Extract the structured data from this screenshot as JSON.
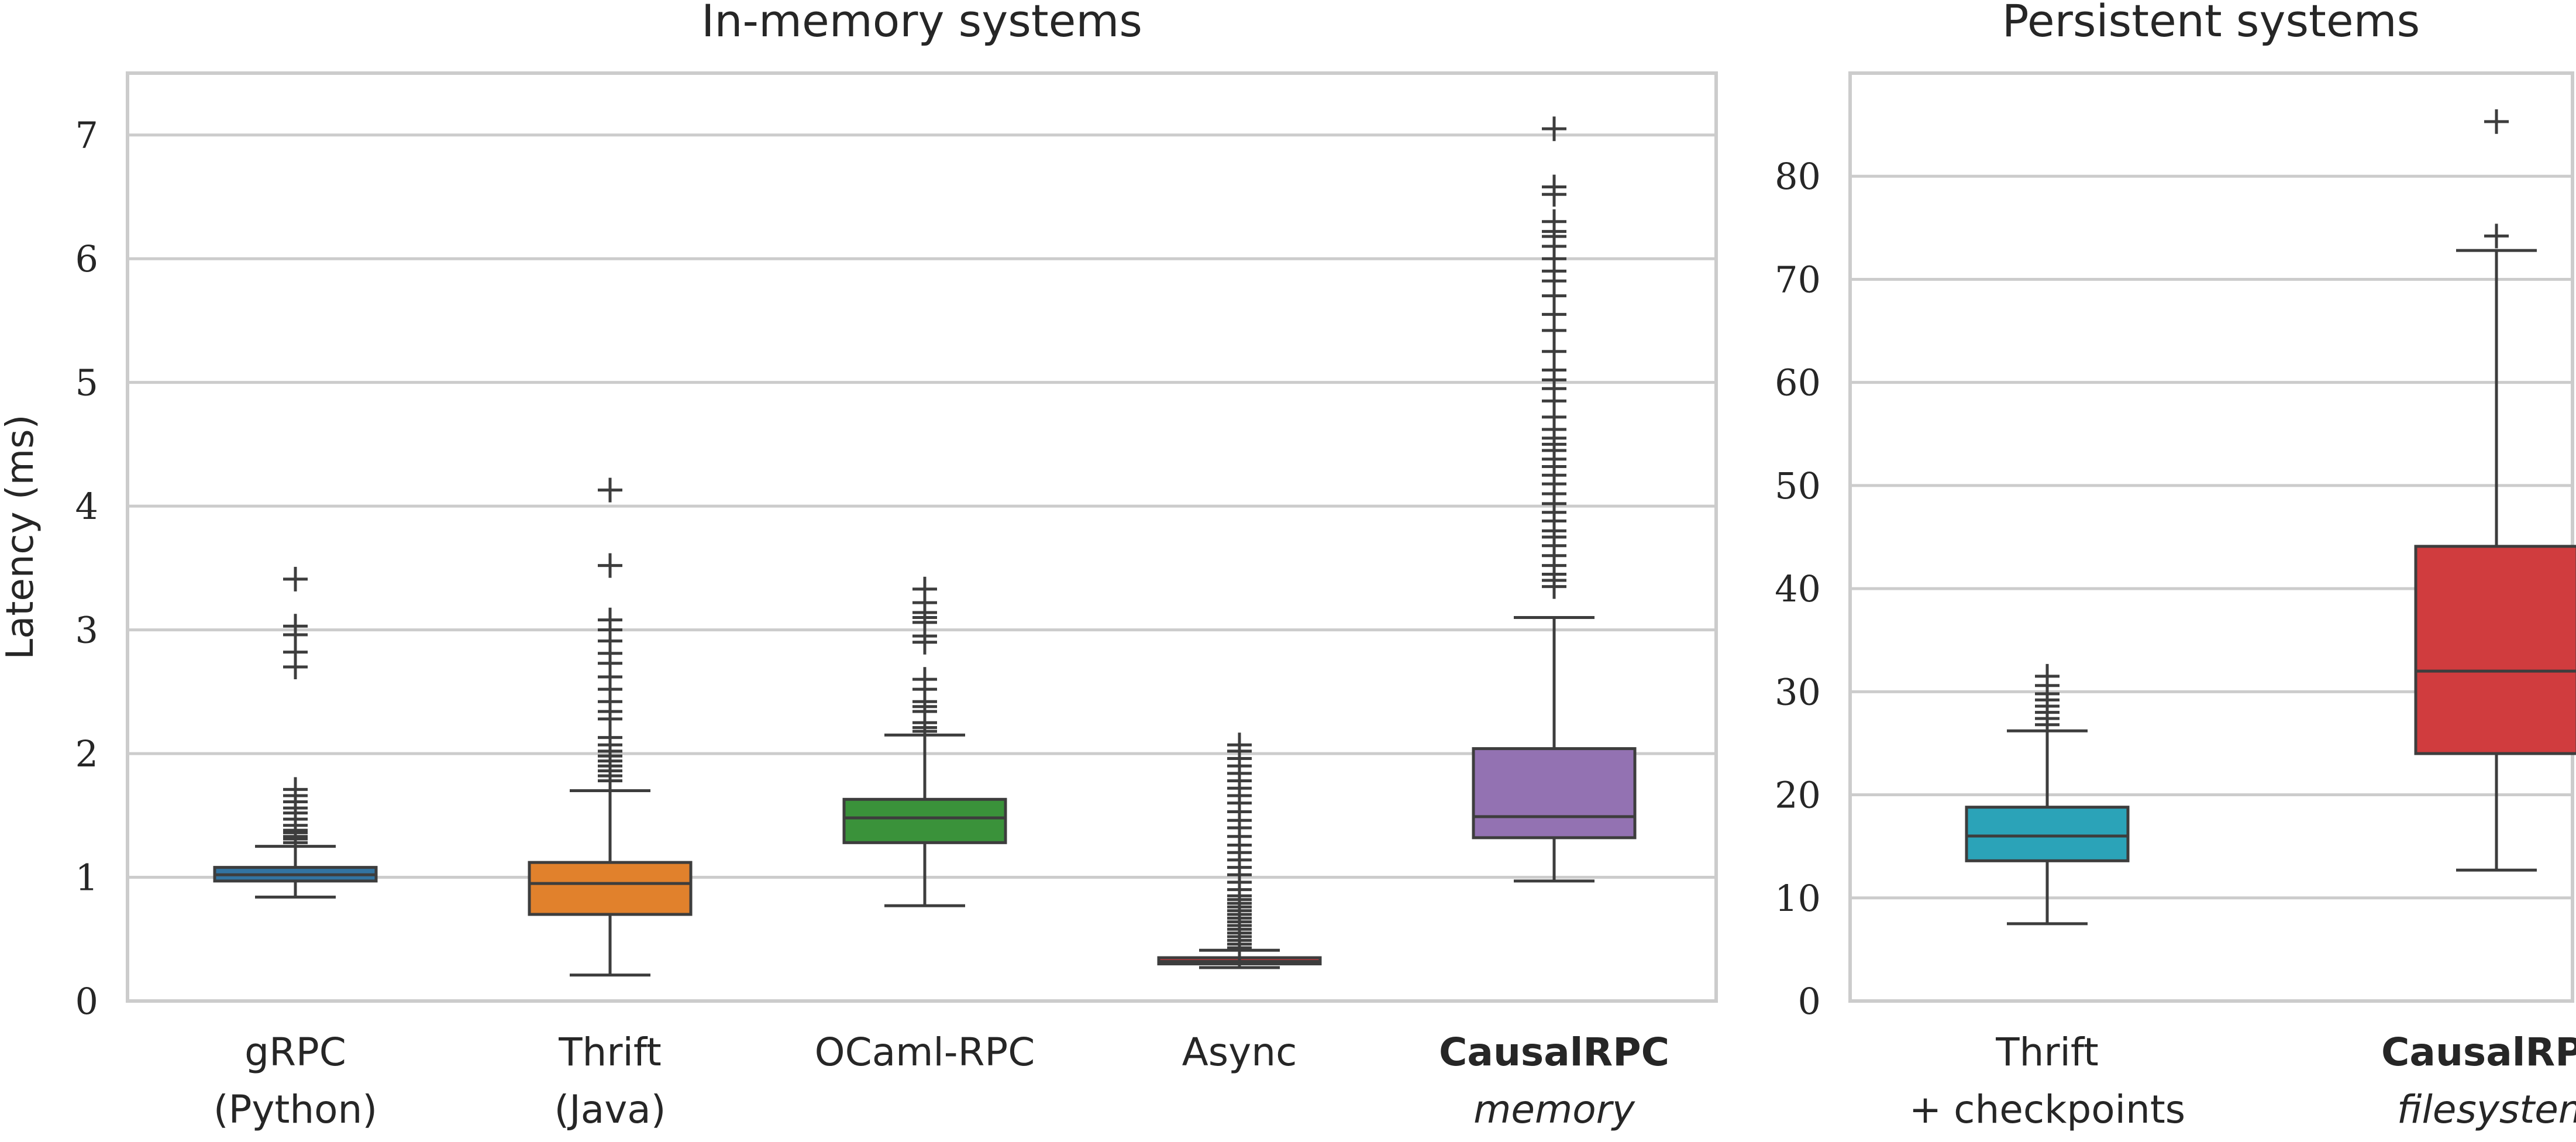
{
  "chart_data": [
    {
      "type": "box",
      "title": "In-memory systems",
      "ylabel": "Latency (ms)",
      "xlabel": "",
      "ylim": [
        0,
        7.5
      ],
      "yticks": [
        0,
        1,
        2,
        3,
        4,
        5,
        6,
        7
      ],
      "grid": true,
      "boxes": [
        {
          "label_line1": "gRPC",
          "label_line2": "(Python)",
          "line1_style": "normal",
          "line2_style": "normal",
          "color": "#3274a1",
          "whisker_low": 0.84,
          "q1": 0.97,
          "median": 1.02,
          "q3": 1.08,
          "whisker_high": 1.25,
          "outliers": [
            1.28,
            1.31,
            1.33,
            1.36,
            1.38,
            1.42,
            1.47,
            1.52,
            1.56,
            1.61,
            1.66,
            1.71,
            2.7,
            2.82,
            2.96,
            3.03,
            3.41
          ]
        },
        {
          "label_line1": "Thrift",
          "label_line2": "(Java)",
          "line1_style": "normal",
          "line2_style": "normal",
          "color": "#e1812c",
          "whisker_low": 0.21,
          "q1": 0.7,
          "median": 0.95,
          "q3": 1.12,
          "whisker_high": 1.7,
          "outliers": [
            1.78,
            1.82,
            1.86,
            1.9,
            1.94,
            1.98,
            2.02,
            2.07,
            2.13,
            2.28,
            2.34,
            2.42,
            2.52,
            2.62,
            2.73,
            2.81,
            2.91,
            3.0,
            3.08,
            3.52,
            4.13
          ]
        },
        {
          "label_line1": "OCaml-RPC",
          "label_line2": "",
          "line1_style": "normal",
          "line2_style": "normal",
          "color": "#3a923a",
          "whisker_low": 0.77,
          "q1": 1.28,
          "median": 1.48,
          "q3": 1.63,
          "whisker_high": 2.15,
          "outliers": [
            2.18,
            2.21,
            2.25,
            2.34,
            2.38,
            2.42,
            2.52,
            2.6,
            2.9,
            2.95,
            3.06,
            3.1,
            3.14,
            3.22,
            3.33
          ]
        },
        {
          "label_line1": "Async",
          "label_line2": "",
          "line1_style": "normal",
          "line2_style": "normal",
          "color": "#c03d3e",
          "whisker_low": 0.27,
          "q1": 0.3,
          "median": 0.32,
          "q3": 0.35,
          "whisker_high": 0.41,
          "outliers": [
            0.43,
            0.46,
            0.49,
            0.52,
            0.55,
            0.58,
            0.61,
            0.64,
            0.67,
            0.7,
            0.73,
            0.76,
            0.79,
            0.82,
            0.85,
            0.9,
            0.96,
            1.02,
            1.08,
            1.14,
            1.2,
            1.26,
            1.33,
            1.4,
            1.46,
            1.53,
            1.6,
            1.66,
            1.72,
            1.78,
            1.84,
            1.9,
            1.96,
            2.02,
            2.07
          ]
        },
        {
          "label_line1": "CausalRPC",
          "label_line2": "memory",
          "line1_style": "bold",
          "line2_style": "italic",
          "color": "#9372b2",
          "whisker_low": 0.97,
          "q1": 1.32,
          "median": 1.49,
          "q3": 2.04,
          "whisker_high": 3.1,
          "outliers": [
            3.35,
            3.4,
            3.45,
            3.52,
            3.6,
            3.68,
            3.75,
            3.8,
            3.88,
            3.95,
            4.02,
            4.1,
            4.18,
            4.25,
            4.32,
            4.38,
            4.45,
            4.5,
            4.55,
            4.62,
            4.72,
            4.85,
            4.95,
            5.02,
            5.1,
            5.25,
            5.42,
            5.55,
            5.7,
            5.82,
            5.9,
            6.0,
            6.1,
            6.18,
            6.22,
            6.3,
            6.52,
            6.58,
            7.05
          ]
        }
      ]
    },
    {
      "type": "box",
      "title": "Persistent systems",
      "ylabel": "",
      "xlabel": "",
      "ylim": [
        0,
        90
      ],
      "yticks": [
        0,
        10,
        20,
        30,
        40,
        50,
        60,
        70,
        80
      ],
      "grid": true,
      "boxes": [
        {
          "label_line1": "Thrift",
          "label_line2": "+ checkpoints",
          "line1_style": "normal",
          "line2_style": "normal",
          "color": "#2ba3b8",
          "whisker_low": 7.5,
          "q1": 13.6,
          "median": 16.0,
          "q3": 18.8,
          "whisker_high": 26.2,
          "outliers": [
            26.8,
            27.4,
            28.0,
            28.6,
            29.2,
            29.8,
            30.6,
            31.5
          ]
        },
        {
          "label_line1": "CausalRPC",
          "label_line2": "filesystem",
          "line1_style": "bold",
          "line2_style": "italic",
          "color": "#d03c3e",
          "whisker_low": 12.7,
          "q1": 24.0,
          "median": 32.0,
          "q3": 44.1,
          "whisker_high": 72.8,
          "outliers": [
            74.2,
            85.3
          ]
        }
      ]
    }
  ]
}
